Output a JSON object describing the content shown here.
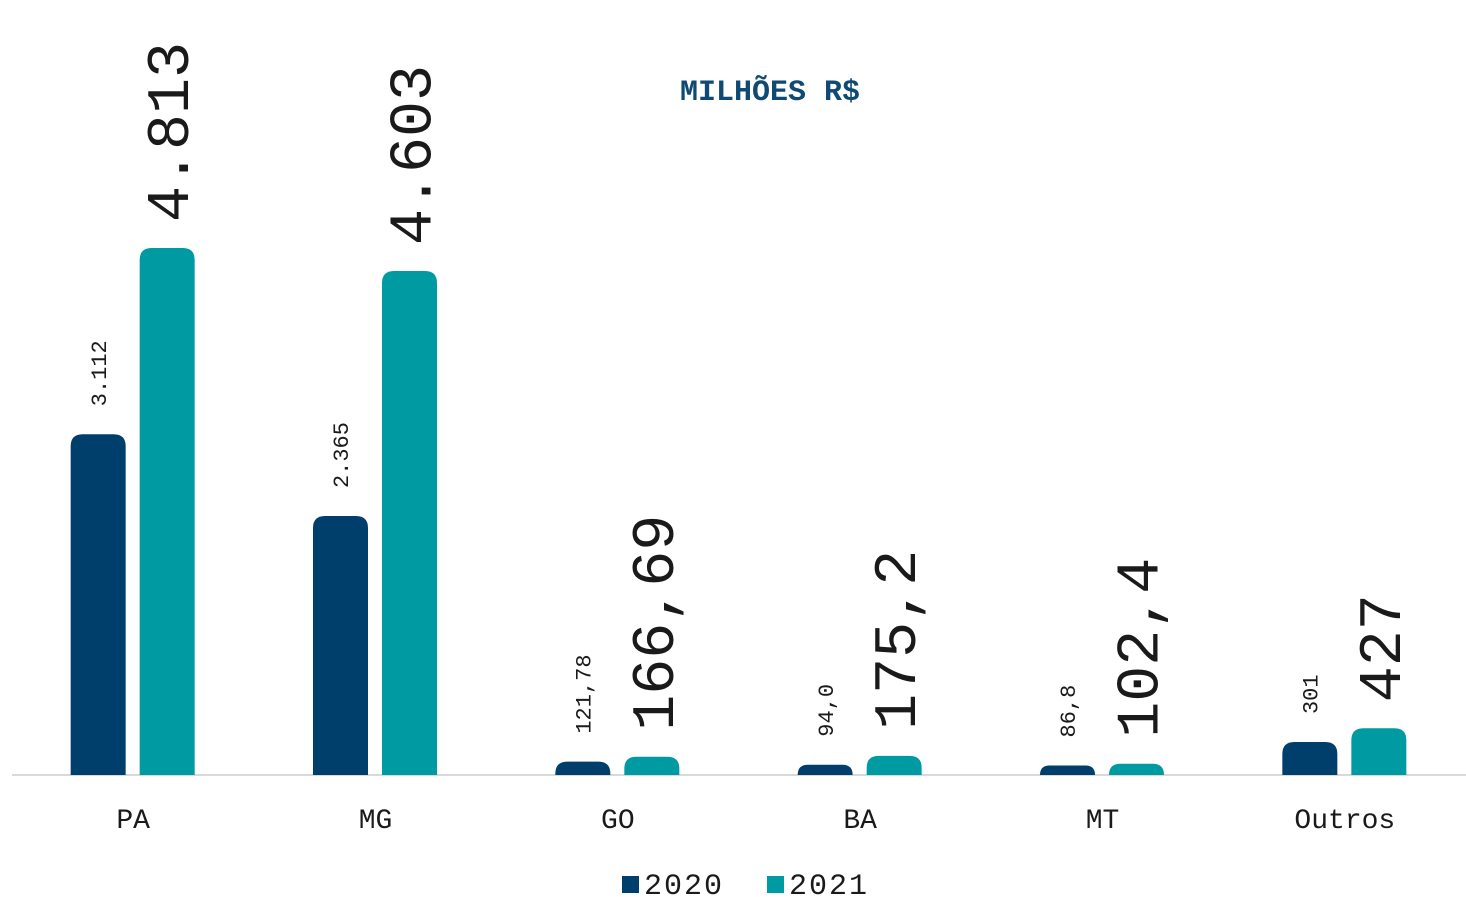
{
  "chart_data": {
    "type": "bar",
    "title": "MILHÕES R$",
    "categories": [
      "PA",
      "MG",
      "GO",
      "BA",
      "MT",
      "Outros"
    ],
    "series": [
      {
        "name": "2020",
        "color": "#003f6b",
        "values": [
          3112,
          2365,
          121.78,
          94.0,
          86.8,
          301
        ],
        "value_labels": [
          "3.112",
          "2.365",
          "121,78",
          "94,0",
          "86,8",
          "301"
        ]
      },
      {
        "name": "2021",
        "color": "#009aa3",
        "values": [
          4813,
          4603,
          166.69,
          175.2,
          102.4,
          427
        ],
        "value_labels": [
          "4.813",
          "4.603",
          "166,69",
          "175,2",
          "102,4",
          "427"
        ]
      }
    ],
    "legend": "bottom"
  }
}
